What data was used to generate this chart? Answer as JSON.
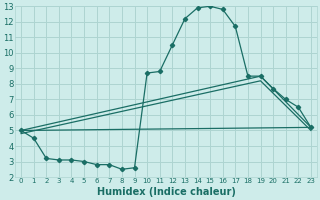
{
  "xlabel": "Humidex (Indice chaleur)",
  "bg_color": "#ceecea",
  "grid_color": "#add4d1",
  "line_color": "#1a6e65",
  "xlim": [
    -0.5,
    23.5
  ],
  "ylim": [
    2,
    13
  ],
  "xticks": [
    0,
    1,
    2,
    3,
    4,
    5,
    6,
    7,
    8,
    9,
    10,
    11,
    12,
    13,
    14,
    15,
    16,
    17,
    18,
    19,
    20,
    21,
    22,
    23
  ],
  "yticks": [
    2,
    3,
    4,
    5,
    6,
    7,
    8,
    9,
    10,
    11,
    12,
    13
  ],
  "series1_x": [
    0,
    1,
    2,
    3,
    4,
    5,
    6,
    7,
    8,
    9,
    10,
    11,
    12,
    13,
    14,
    15,
    16,
    17,
    18,
    19,
    20,
    21,
    22,
    23
  ],
  "series1_y": [
    5.0,
    4.5,
    3.2,
    3.1,
    3.1,
    3.0,
    2.8,
    2.8,
    2.5,
    2.6,
    8.7,
    8.8,
    10.5,
    12.2,
    12.9,
    13.0,
    12.8,
    11.7,
    8.5,
    8.5,
    7.7,
    7.0,
    6.5,
    5.2
  ],
  "series2_x": [
    0,
    23
  ],
  "series2_y": [
    5.0,
    5.2
  ],
  "series3_x": [
    0,
    19,
    23
  ],
  "series3_y": [
    5.0,
    8.5,
    5.2
  ],
  "series4_x": [
    0,
    19,
    23
  ],
  "series4_y": [
    4.8,
    8.2,
    5.0
  ]
}
